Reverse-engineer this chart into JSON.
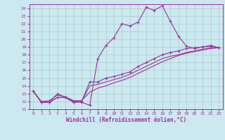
{
  "xlabel": "Windchill (Refroidissement éolien,°C)",
  "bg_color": "#cce8f0",
  "line_color": "#993399",
  "grid_color": "#aacccc",
  "xlim": [
    -0.5,
    23.5
  ],
  "ylim": [
    11,
    24.5
  ],
  "xticks": [
    0,
    1,
    2,
    3,
    4,
    5,
    6,
    7,
    8,
    9,
    10,
    11,
    12,
    13,
    14,
    15,
    16,
    17,
    18,
    19,
    20,
    21,
    22,
    23
  ],
  "yticks": [
    11,
    12,
    13,
    14,
    15,
    16,
    17,
    18,
    19,
    20,
    21,
    22,
    23,
    24
  ],
  "curve1_x": [
    0,
    1,
    2,
    3,
    4,
    5,
    6,
    7,
    8,
    9,
    10,
    11,
    12,
    13,
    14,
    15,
    16,
    17,
    18,
    19,
    20,
    21,
    22,
    23
  ],
  "curve1_y": [
    13.3,
    11.9,
    11.9,
    13.0,
    12.5,
    11.9,
    11.9,
    11.5,
    17.5,
    19.2,
    20.2,
    22.0,
    21.7,
    22.2,
    24.1,
    23.7,
    24.3,
    22.3,
    20.4,
    19.1,
    18.8,
    19.0,
    19.2,
    18.9
  ],
  "curve2_x": [
    0,
    1,
    2,
    3,
    4,
    5,
    6,
    7,
    8,
    9,
    10,
    11,
    12,
    13,
    14,
    15,
    16,
    17,
    18,
    19,
    20,
    21,
    22,
    23
  ],
  "curve2_y": [
    13.3,
    11.9,
    11.9,
    12.5,
    12.5,
    11.9,
    12.0,
    14.5,
    14.5,
    15.0,
    15.2,
    15.5,
    15.8,
    16.5,
    17.0,
    17.5,
    18.0,
    18.3,
    18.5,
    18.8,
    18.9,
    19.0,
    19.1,
    18.9
  ],
  "curve3_x": [
    0,
    1,
    2,
    3,
    4,
    5,
    6,
    7,
    8,
    9,
    10,
    11,
    12,
    13,
    14,
    15,
    16,
    17,
    18,
    19,
    20,
    21,
    22,
    23
  ],
  "curve3_y": [
    13.3,
    11.9,
    11.9,
    12.5,
    12.5,
    12.0,
    12.0,
    14.0,
    14.2,
    14.5,
    14.8,
    15.1,
    15.5,
    16.0,
    16.5,
    17.0,
    17.5,
    17.8,
    18.0,
    18.3,
    18.5,
    18.7,
    18.9,
    18.9
  ],
  "curve4_x": [
    0,
    1,
    2,
    3,
    4,
    5,
    6,
    7,
    8,
    9,
    10,
    11,
    12,
    13,
    14,
    15,
    16,
    17,
    18,
    19,
    20,
    21,
    22,
    23
  ],
  "curve4_y": [
    13.3,
    12.0,
    12.1,
    12.8,
    12.6,
    12.1,
    12.1,
    13.2,
    13.7,
    14.0,
    14.4,
    14.7,
    15.1,
    15.6,
    16.1,
    16.6,
    17.1,
    17.5,
    17.9,
    18.2,
    18.4,
    18.6,
    18.8,
    18.9
  ],
  "xlabel_fontsize": 5.5,
  "tick_fontsize": 4.5
}
